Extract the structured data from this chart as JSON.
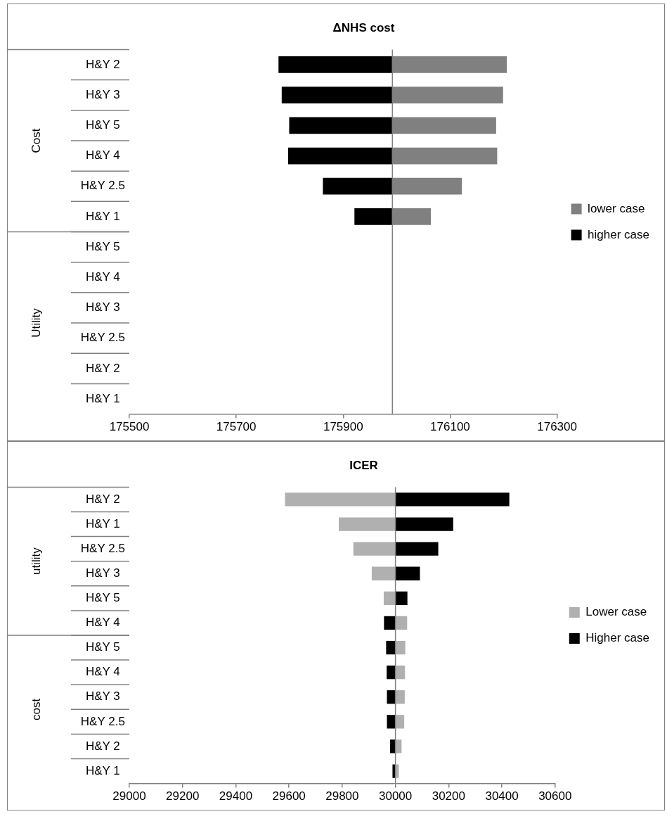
{
  "chart_data": [
    {
      "type": "bar",
      "orientation": "horizontal",
      "title": "ΔNHS cost",
      "categories": [
        "H&Y 2",
        "H&Y 3",
        "H&Y 5",
        "H&Y 4",
        "H&Y 2.5",
        "H&Y 1",
        "H&Y 5",
        "H&Y 4",
        "H&Y 3",
        "H&Y 2.5",
        "H&Y 2",
        "H&Y 1"
      ],
      "annotations": [
        "Cost",
        "Utility"
      ],
      "series": [
        {
          "name": "lower case",
          "color": "#808080",
          "values": [
            214,
            207,
            194,
            196,
            130,
            72,
            null,
            null,
            null,
            null,
            null,
            null
          ],
          "base": [
            175992,
            175992,
            175992,
            175992,
            175992,
            175992,
            null,
            null,
            null,
            null,
            null,
            null
          ]
        },
        {
          "name": "higher case",
          "color": "#000000",
          "values": [
            -213,
            -207,
            -193,
            -195,
            -130,
            -71,
            null,
            null,
            null,
            null,
            null,
            null
          ],
          "base": [
            175992,
            175992,
            175992,
            175992,
            175992,
            175992,
            null,
            null,
            null,
            null,
            null,
            null
          ]
        }
      ],
      "xlim": [
        175500,
        176300
      ],
      "xticks": [
        175500,
        175700,
        175900,
        176100,
        176300
      ],
      "ref_lines": [
        {
          "axis": "x",
          "value": 175992
        }
      ],
      "legend": "right",
      "grid": false
    },
    {
      "type": "bar",
      "orientation": "horizontal",
      "title": "ICER",
      "categories": [
        "H&Y 2",
        "H&Y 1",
        "H&Y 2.5",
        "H&Y 3",
        "H&Y 5",
        "H&Y 4",
        "H&Y 5",
        "H&Y 4",
        "H&Y 3",
        "H&Y 2.5",
        "H&Y 2",
        "H&Y 1"
      ],
      "annotations": [
        "utility",
        "cost"
      ],
      "series": [
        {
          "name": "Lower case",
          "color": "#b0b0b0",
          "values": [
            -415,
            -213,
            -158,
            -89,
            -44,
            44,
            37,
            36,
            35,
            33,
            23,
            13
          ],
          "base": [
            30000,
            30000,
            30000,
            30000,
            30000,
            30000,
            30000,
            30000,
            30000,
            30000,
            30000,
            30000
          ]
        },
        {
          "name": "Higher case",
          "color": "#000000",
          "values": [
            428,
            217,
            161,
            92,
            45,
            -43,
            -35,
            -33,
            -32,
            -32,
            -20,
            -11
          ],
          "base": [
            30000,
            30000,
            30000,
            30000,
            30000,
            30000,
            30000,
            30000,
            30000,
            30000,
            30000,
            30000
          ]
        }
      ],
      "xlim": [
        29000,
        30600
      ],
      "xticks": [
        29000,
        29200,
        29400,
        29600,
        29800,
        30000,
        30200,
        30400,
        30600
      ],
      "ref_lines": [
        {
          "axis": "x",
          "value": 30000
        }
      ],
      "legend": "right",
      "grid": false
    }
  ]
}
